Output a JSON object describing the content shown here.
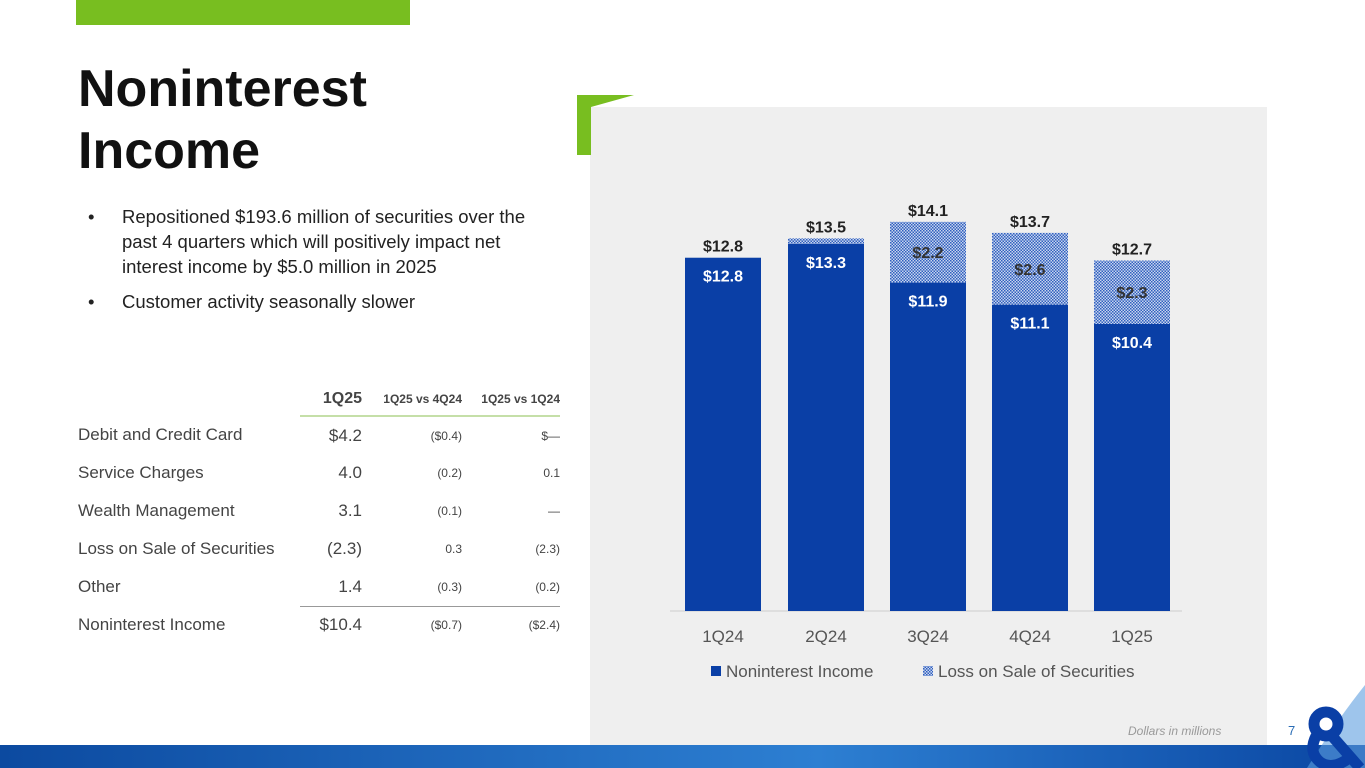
{
  "title": "Noninterest Income",
  "bullets": [
    "Repositioned $193.6 million of securities over the past 4 quarters which will positively impact net interest income by $5.0 million in 2025",
    "Customer activity seasonally slower"
  ],
  "table": {
    "headers": [
      "1Q25",
      "1Q25 vs 4Q24",
      "1Q25 vs 1Q24"
    ],
    "rows": [
      {
        "label": "Debit and Credit Card",
        "v": "$4.2",
        "a": "($0.4)",
        "b": "$—"
      },
      {
        "label": "Service Charges",
        "v": "4.0",
        "a": "(0.2)",
        "b": "0.1"
      },
      {
        "label": "Wealth Management",
        "v": "3.1",
        "a": "(0.1)",
        "b": "—"
      },
      {
        "label": "Loss on Sale of Securities",
        "v": "(2.3)",
        "a": "0.3",
        "b": "(2.3)"
      },
      {
        "label": "Other",
        "v": "1.4",
        "a": "(0.3)",
        "b": "(0.2)"
      },
      {
        "label": "Noninterest Income",
        "v": "$10.4",
        "a": "($0.7)",
        "b": "($2.4)"
      }
    ]
  },
  "chart_data": {
    "type": "bar",
    "stacked": true,
    "categories": [
      "1Q24",
      "2Q24",
      "3Q24",
      "4Q24",
      "1Q25"
    ],
    "series": [
      {
        "name": "Noninterest Income",
        "values": [
          12.8,
          13.3,
          11.9,
          11.1,
          10.4
        ],
        "labels": [
          "$12.8",
          "$13.3",
          "$11.9",
          "$11.1",
          "$10.4"
        ],
        "color": "#0a3fa6"
      },
      {
        "name": "Loss on Sale of Securities",
        "values": [
          0,
          0.2,
          2.2,
          2.6,
          2.3
        ],
        "labels": [
          "",
          "",
          "$2.2",
          "$2.6",
          "$2.3"
        ],
        "color": "#5b7fc9",
        "pattern": "hatched"
      }
    ],
    "totals": [
      "$12.8",
      "$13.5",
      "$14.1",
      "$13.7",
      "$12.7"
    ],
    "legend": "bottom",
    "ylim": [
      0,
      15
    ]
  },
  "footnote": "Dollars in millions",
  "page_number": "7",
  "colors": {
    "green": "#78be20",
    "blue": "#0a3fa6"
  }
}
